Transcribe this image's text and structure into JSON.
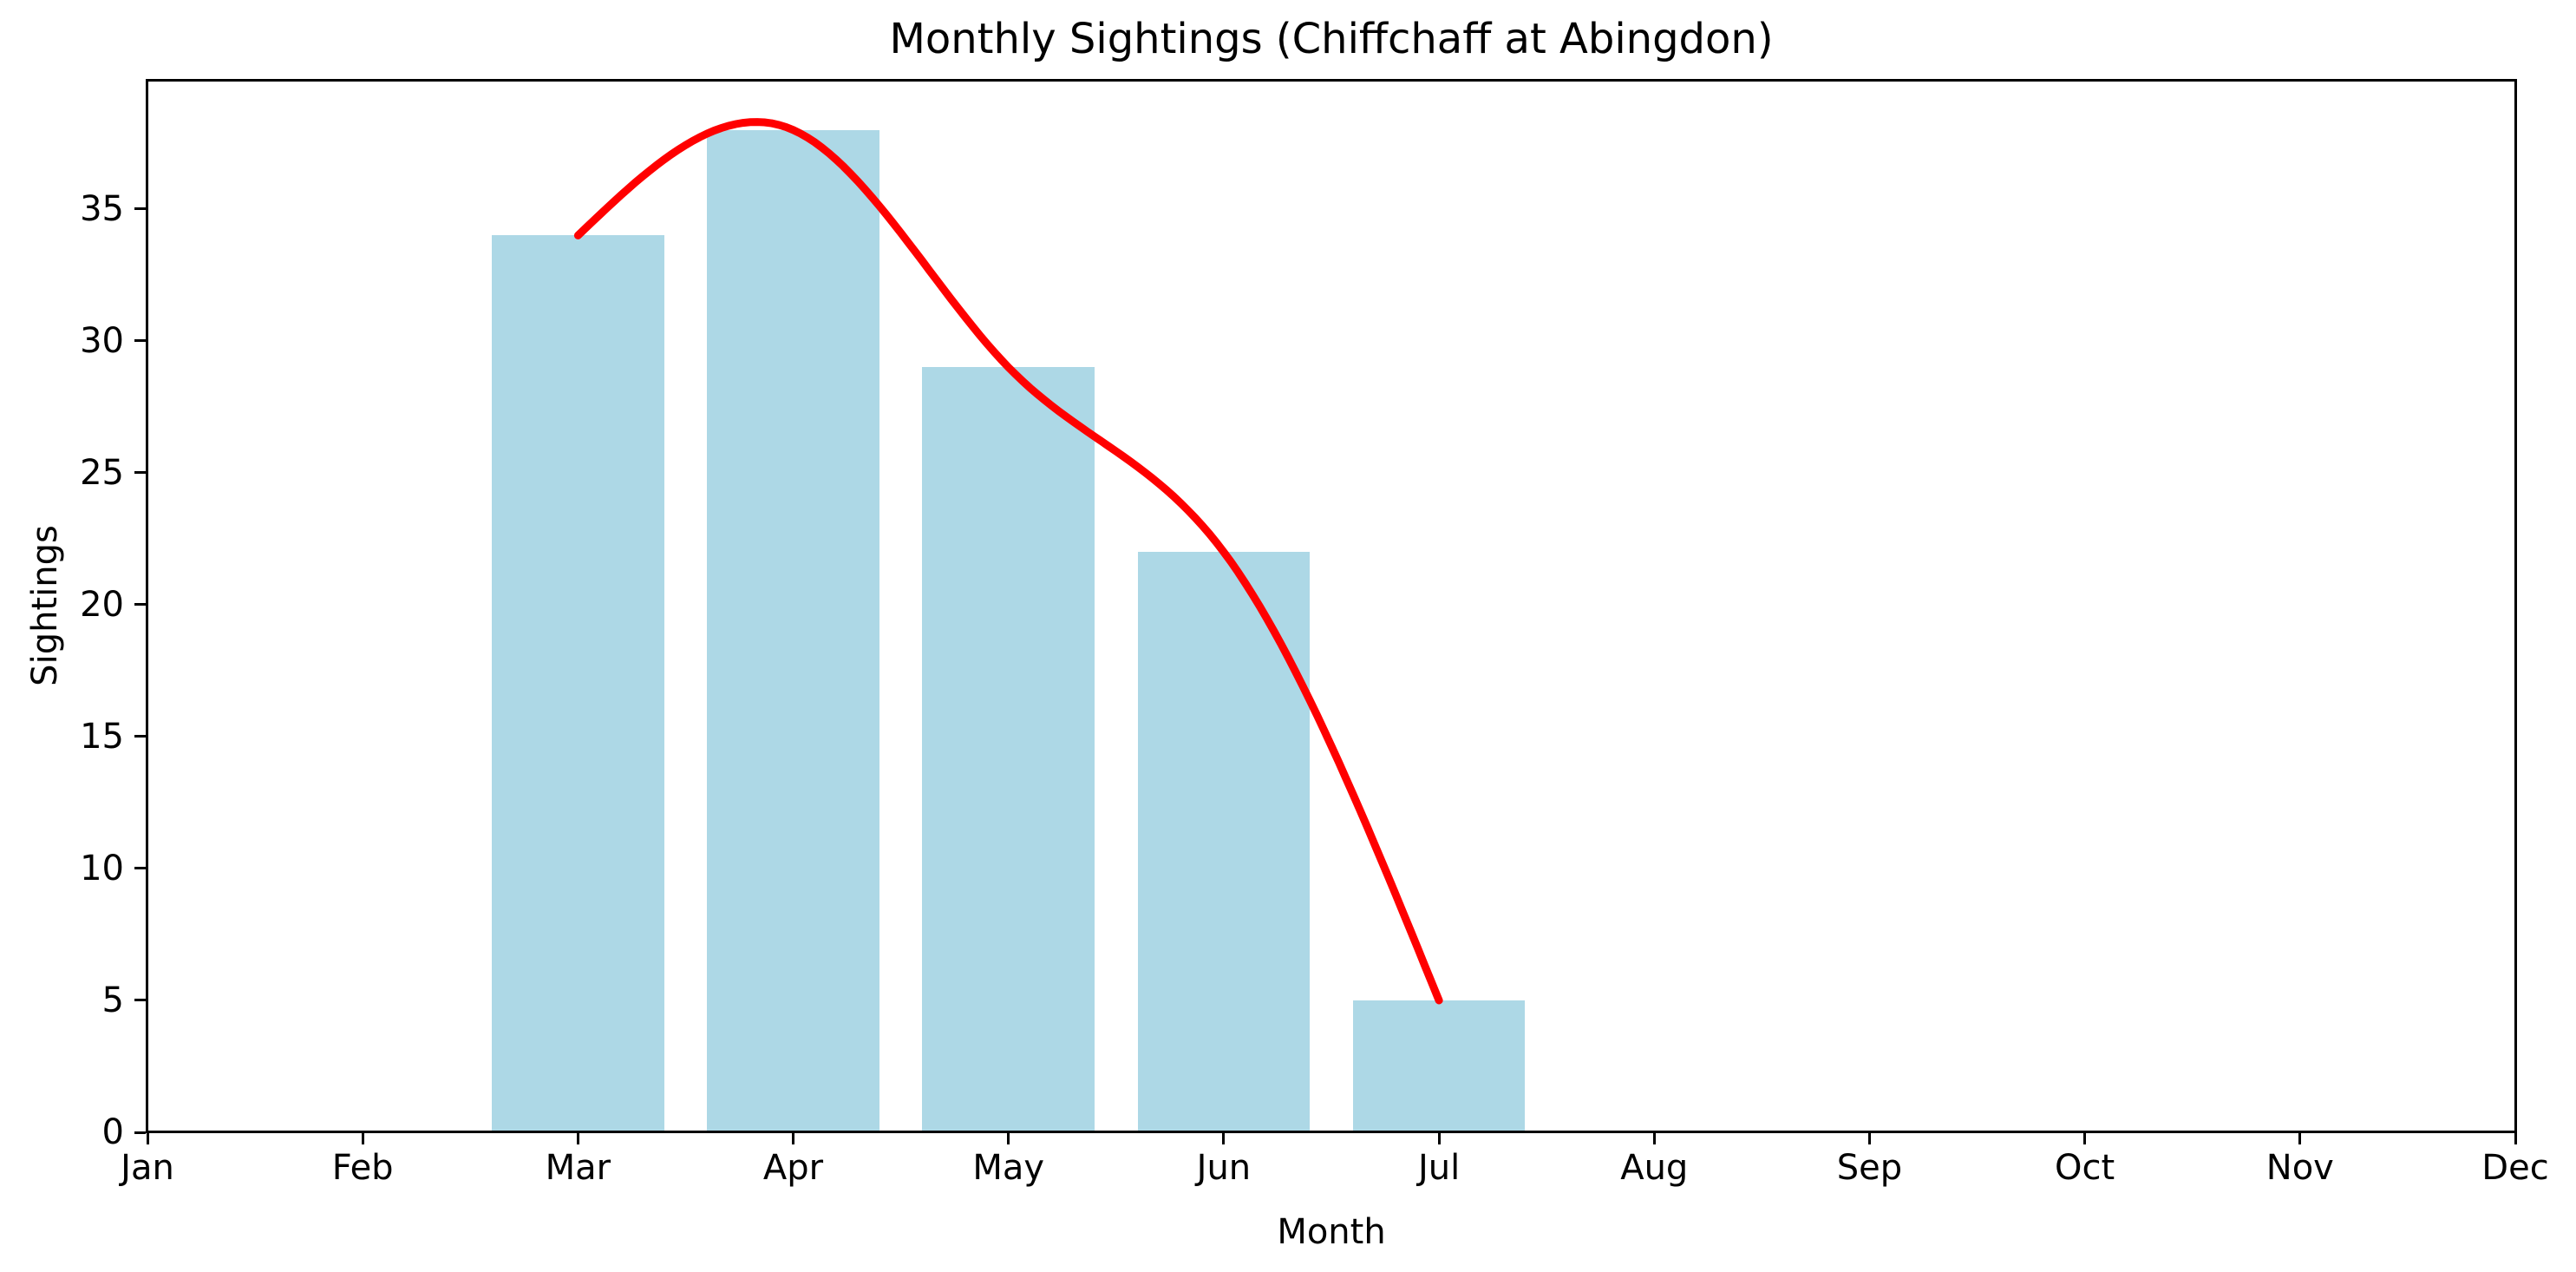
{
  "chart_data": {
    "type": "bar",
    "title": "Monthly Sightings (Chiffchaff at Abingdon)",
    "xlabel": "Month",
    "ylabel": "Sightings",
    "x_categories": [
      "Jan",
      "Feb",
      "Mar",
      "Apr",
      "May",
      "Jun",
      "Jul",
      "Aug",
      "Sep",
      "Oct",
      "Nov",
      "Dec"
    ],
    "y_ticks": [
      0,
      5,
      10,
      15,
      20,
      25,
      30,
      35
    ],
    "ylim": [
      0,
      39.9
    ],
    "grid": false,
    "legend": null,
    "bar_width_fraction": 0.8,
    "series": [
      {
        "name": "monthly-sightings-bars",
        "type": "bar",
        "color": "#ADD8E6",
        "categories": [
          "Mar",
          "Apr",
          "May",
          "Jun",
          "Jul"
        ],
        "values": [
          34,
          38,
          29,
          22,
          5
        ]
      },
      {
        "name": "smoothed-trend-line",
        "type": "line",
        "color": "#FF0000",
        "smoothing": "cubic-spline",
        "stroke_width": 9,
        "categories": [
          "Mar",
          "Apr",
          "May",
          "Jun",
          "Jul"
        ],
        "values": [
          34,
          38,
          29,
          22,
          5
        ]
      }
    ],
    "colors": {
      "background": "#FFFFFF",
      "axis": "#000000",
      "text": "#000000"
    }
  }
}
